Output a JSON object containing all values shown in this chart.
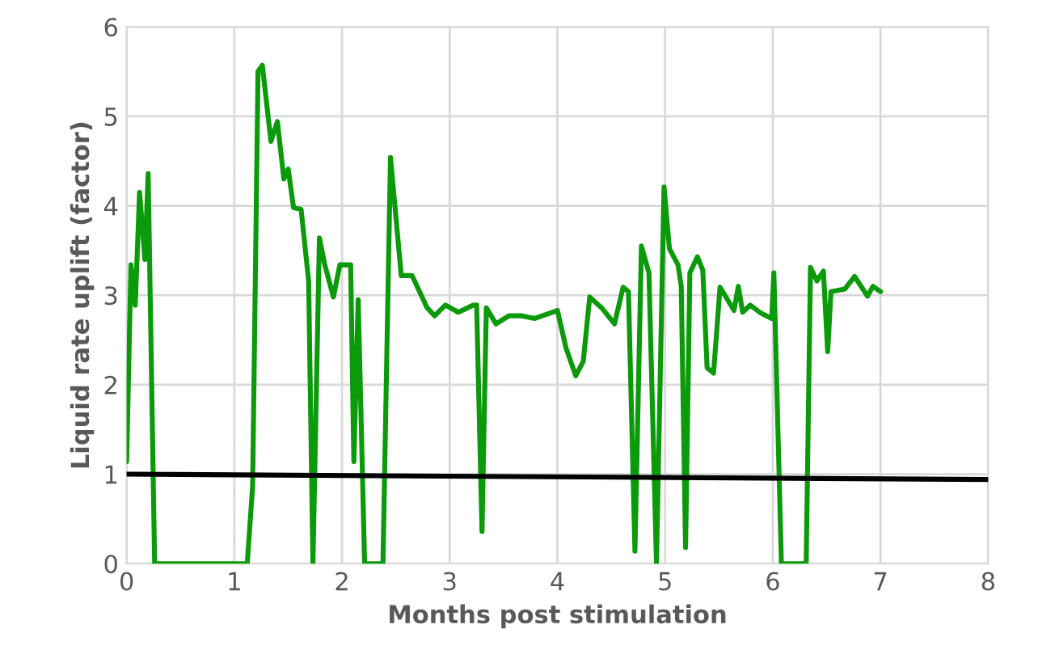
{
  "chart_data": {
    "type": "line",
    "xlabel": "Months post stimulation",
    "ylabel": "Liquid rate uplift (factor)",
    "xlim": [
      0,
      8
    ],
    "ylim": [
      0,
      6
    ],
    "xticks": [
      0,
      1,
      2,
      3,
      4,
      5,
      6,
      7,
      8
    ],
    "yticks": [
      0,
      1,
      2,
      3,
      4,
      5,
      6
    ],
    "grid": true,
    "line_style": "solid",
    "marker": "none",
    "series": [
      {
        "color": "#0a9a0a",
        "x": [
          0.0,
          0.04,
          0.08,
          0.12,
          0.17,
          0.2,
          0.26,
          1.12,
          1.17,
          1.22,
          1.26,
          1.34,
          1.4,
          1.46,
          1.5,
          1.55,
          1.62,
          1.69,
          1.73,
          1.79,
          1.84,
          1.92,
          1.98,
          2.08,
          2.11,
          2.15,
          2.21,
          2.38,
          2.45,
          2.55,
          2.65,
          2.72,
          2.79,
          2.86,
          2.96,
          3.08,
          3.22,
          3.25,
          3.3,
          3.34,
          3.43,
          3.55,
          3.67,
          3.79,
          4.0,
          4.08,
          4.17,
          4.24,
          4.3,
          4.41,
          4.53,
          4.61,
          4.66,
          4.72,
          4.78,
          4.85,
          4.92,
          4.99,
          5.04,
          5.12,
          5.15,
          5.19,
          5.23,
          5.3,
          5.35,
          5.39,
          5.45,
          5.51,
          5.58,
          5.64,
          5.68,
          5.72,
          5.79,
          5.89,
          5.99,
          6.01,
          6.08,
          6.31,
          6.35,
          6.41,
          6.47,
          6.51,
          6.54,
          6.67,
          6.76,
          6.88,
          6.93,
          7.0
        ],
        "values": [
          1.14,
          3.34,
          2.89,
          4.15,
          3.4,
          4.36,
          0,
          0,
          0.87,
          5.5,
          5.57,
          4.72,
          4.94,
          4.3,
          4.41,
          3.98,
          3.96,
          3.16,
          0,
          3.64,
          3.34,
          2.98,
          3.34,
          3.34,
          1.14,
          2.95,
          0,
          0,
          4.54,
          3.22,
          3.22,
          3.04,
          2.86,
          2.77,
          2.89,
          2.81,
          2.89,
          2.89,
          0.36,
          2.86,
          2.68,
          2.77,
          2.77,
          2.74,
          2.83,
          2.41,
          2.1,
          2.26,
          2.98,
          2.86,
          2.68,
          3.09,
          3.04,
          0.14,
          3.55,
          3.25,
          0,
          4.21,
          3.52,
          3.34,
          3.1,
          0.18,
          3.25,
          3.43,
          3.28,
          2.19,
          2.13,
          3.09,
          2.95,
          2.83,
          3.1,
          2.81,
          2.89,
          2.8,
          2.74,
          3.25,
          0,
          0,
          3.31,
          3.16,
          3.27,
          2.37,
          3.04,
          3.07,
          3.21,
          2.99,
          3.1,
          3.04
        ]
      },
      {
        "color": "#000000",
        "x": [
          0,
          8
        ],
        "values": [
          1.0,
          0.94
        ]
      }
    ]
  }
}
